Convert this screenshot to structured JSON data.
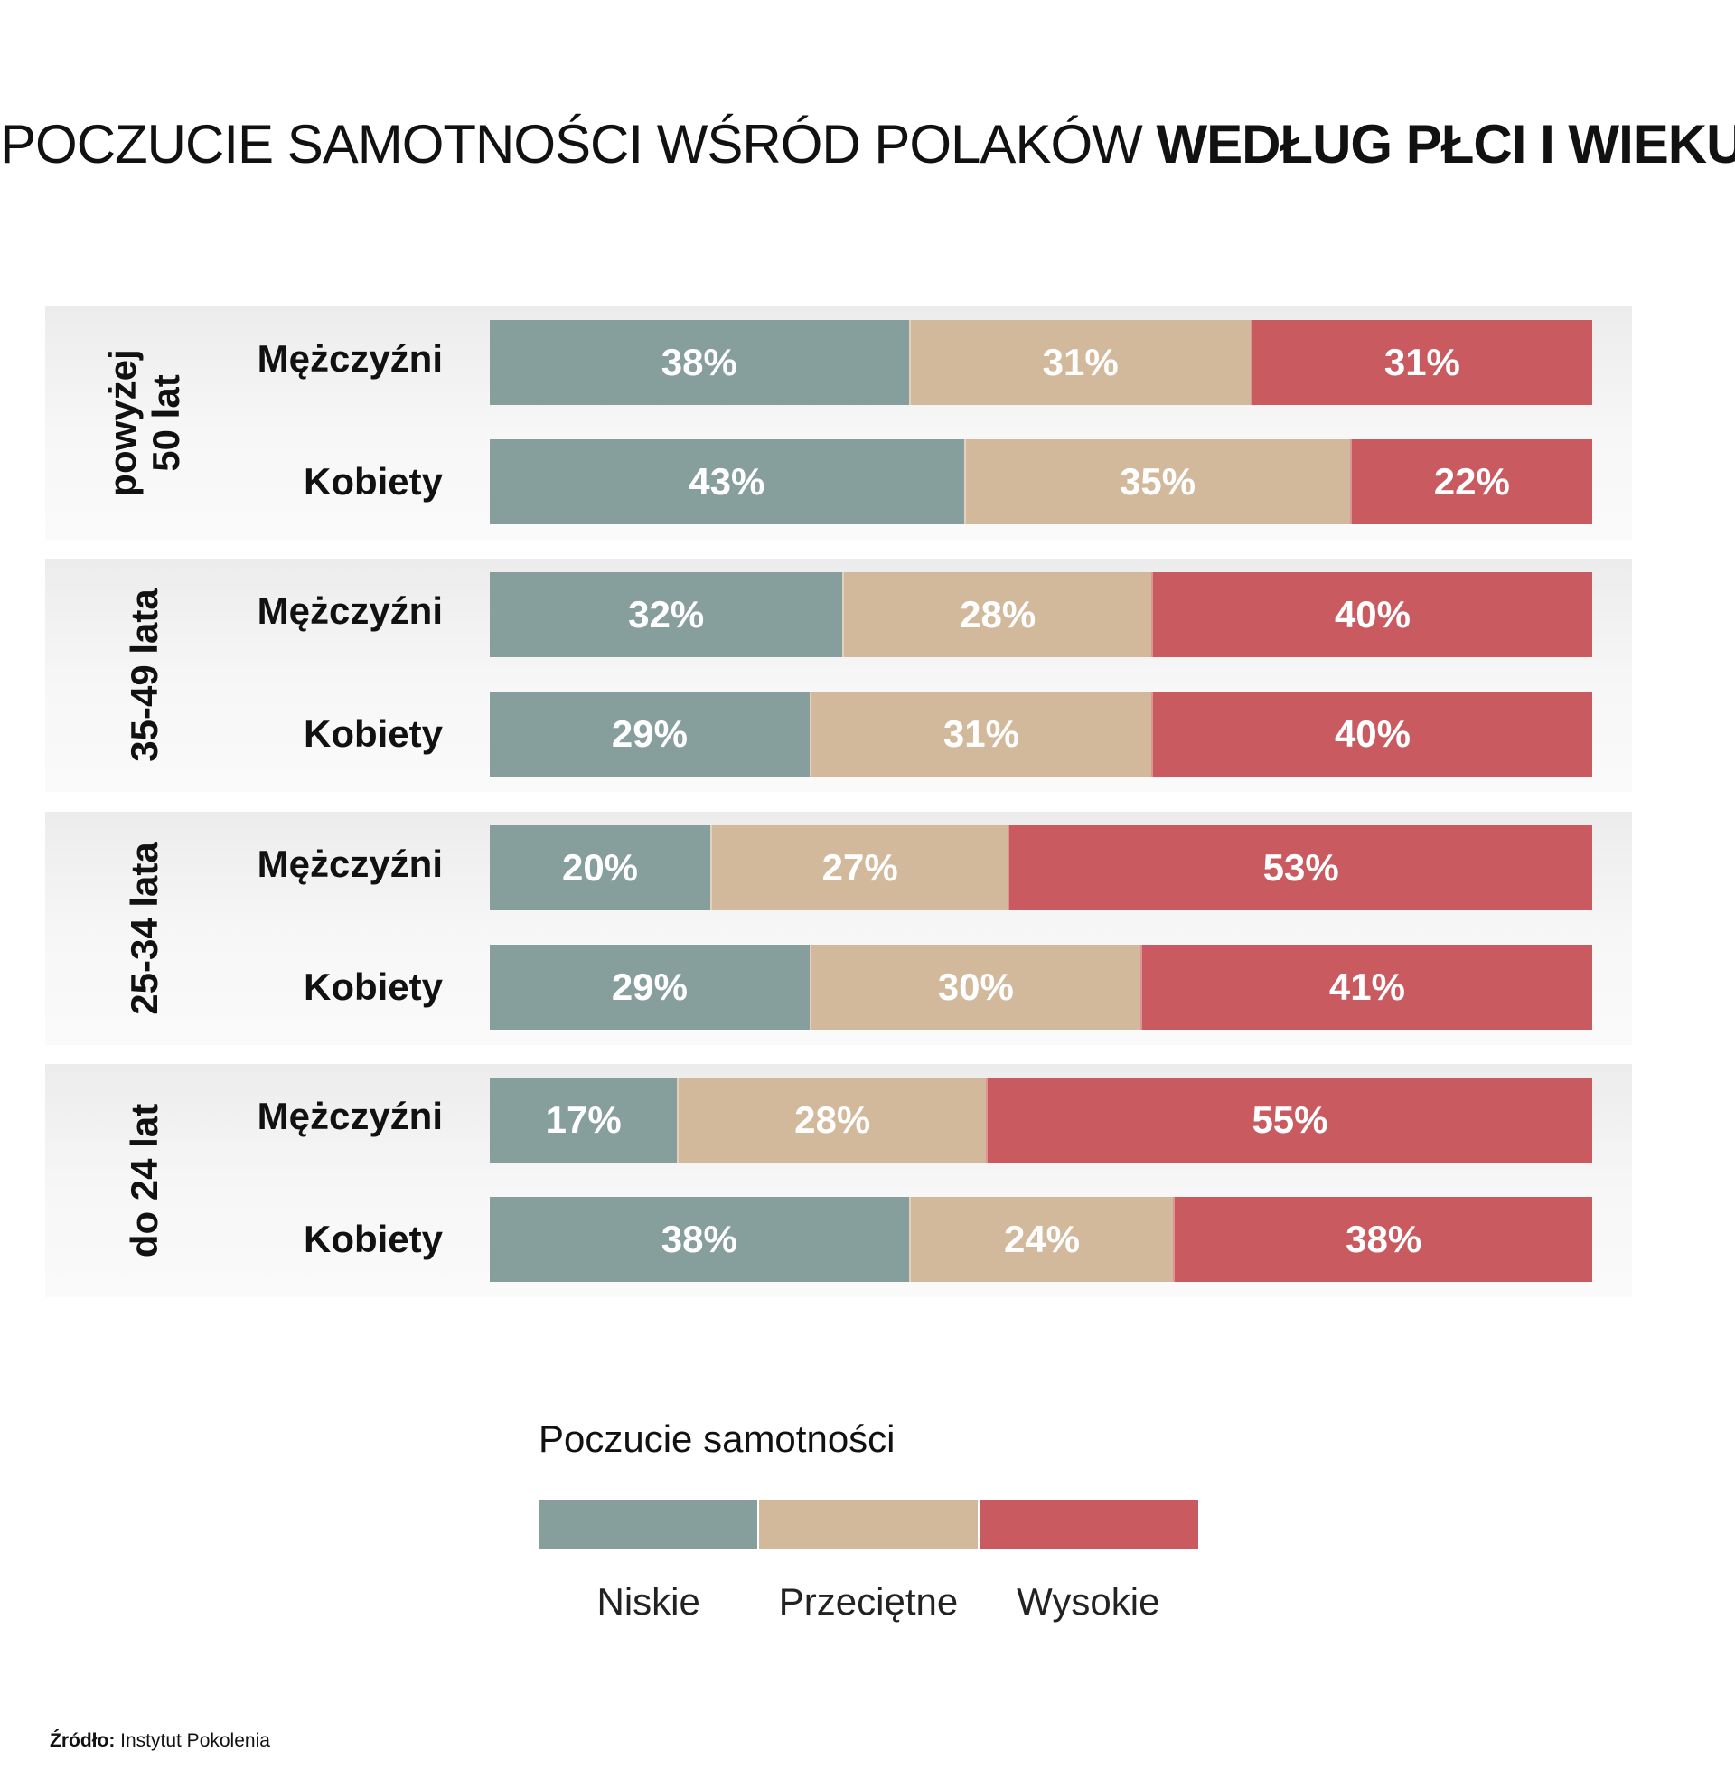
{
  "title": {
    "light": "POCZUCIE SAMOTNOŚCI WŚRÓD POLAKÓW",
    "bold": "WEDŁUG PŁCI I WIEKU"
  },
  "colors": {
    "niskie": "#869e9c",
    "przecietne": "#d3b99c",
    "wysokie": "#c95b60"
  },
  "chart_data": {
    "type": "bar",
    "orientation": "horizontal",
    "stacked": true,
    "percent_stacked": true,
    "title": "POCZUCIE SAMOTNOŚCI WŚRÓD POLAKÓW WEDŁUG PŁCI I WIEKU",
    "xlim": [
      0,
      100
    ],
    "grid": false,
    "legend": {
      "title": "Poczucie samotności",
      "position": "bottom",
      "entries": [
        "Niskie",
        "Przeciętne",
        "Wysokie"
      ]
    },
    "groups": [
      {
        "label_lines": [
          "powyżej",
          "50 lat"
        ],
        "rows": [
          {
            "label": "Mężczyźni",
            "values": [
              38,
              31,
              31
            ],
            "value_labels": [
              "38%",
              "31%",
              "31%"
            ]
          },
          {
            "label": "Kobiety",
            "values": [
              43,
              35,
              22
            ],
            "value_labels": [
              "43%",
              "35%",
              "22%"
            ]
          }
        ]
      },
      {
        "label_lines": [
          "35-49 lata"
        ],
        "rows": [
          {
            "label": "Mężczyźni",
            "values": [
              32,
              28,
              40
            ],
            "value_labels": [
              "32%",
              "28%",
              "40%"
            ]
          },
          {
            "label": "Kobiety",
            "values": [
              29,
              31,
              40
            ],
            "value_labels": [
              "29%",
              "31%",
              "40%"
            ]
          }
        ]
      },
      {
        "label_lines": [
          "25-34 lata"
        ],
        "rows": [
          {
            "label": "Mężczyźni",
            "values": [
              20,
              27,
              53
            ],
            "value_labels": [
              "20%",
              "27%",
              "53%"
            ]
          },
          {
            "label": "Kobiety",
            "values": [
              29,
              30,
              41
            ],
            "value_labels": [
              "29%",
              "30%",
              "41%"
            ]
          }
        ]
      },
      {
        "label_lines": [
          "do 24 lat"
        ],
        "rows": [
          {
            "label": "Mężczyźni",
            "values": [
              17,
              28,
              55
            ],
            "value_labels": [
              "17%",
              "28%",
              "55%"
            ]
          },
          {
            "label": "Kobiety",
            "values": [
              38,
              24,
              38
            ],
            "value_labels": [
              "38%",
              "24%",
              "38%"
            ]
          }
        ]
      }
    ]
  },
  "source": {
    "label": "Źródło:",
    "text": "Instytut Pokolenia"
  }
}
